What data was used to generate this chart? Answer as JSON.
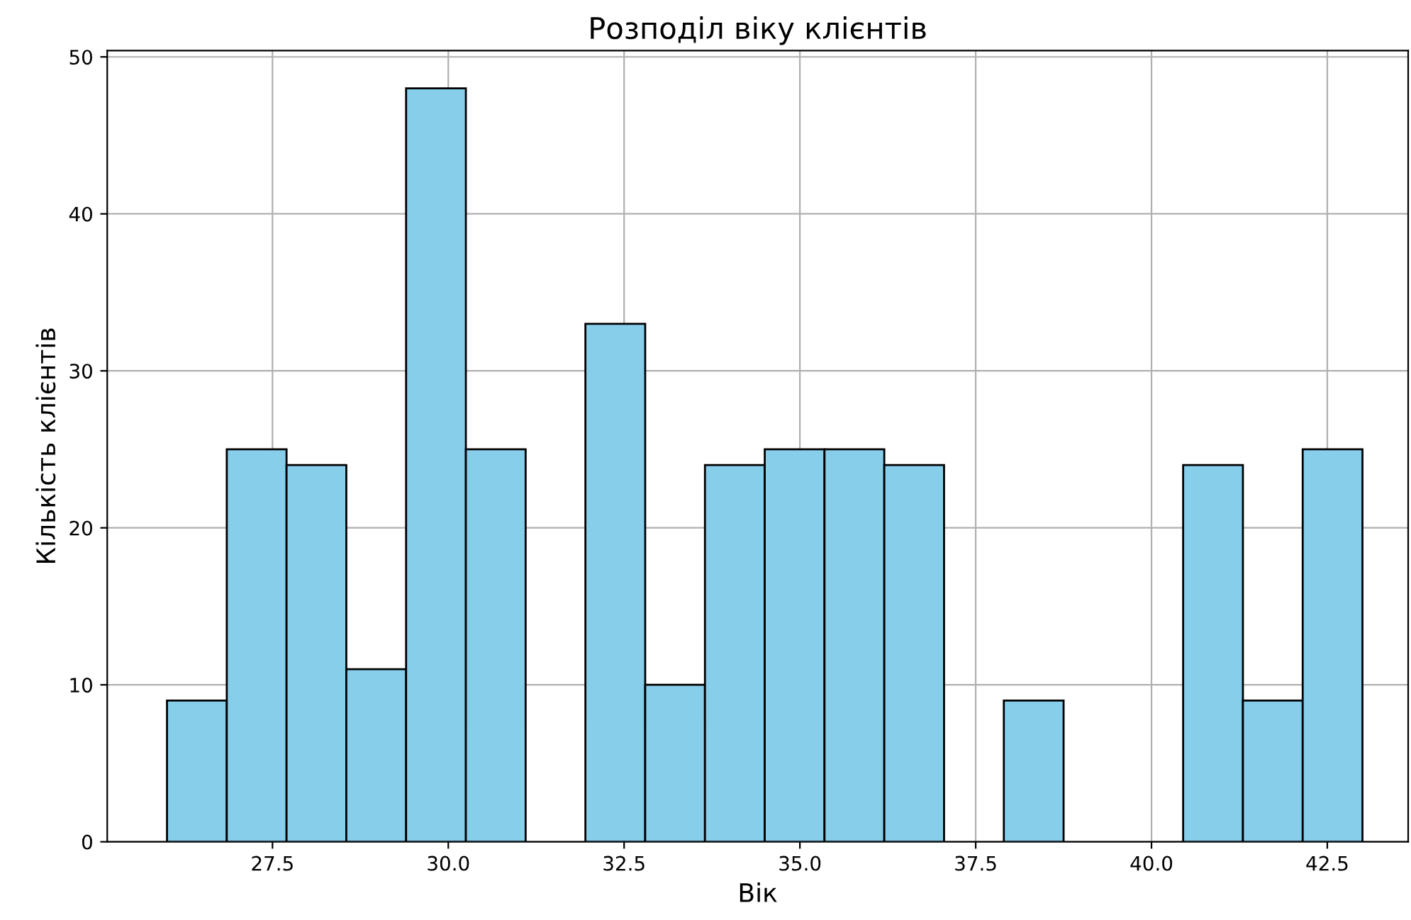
{
  "chart_data": {
    "type": "histogram",
    "title": "Розподіл віку клієнтів",
    "xlabel": "Вік",
    "ylabel": "Кількість клієнтів",
    "bins": [
      26.0,
      26.85,
      27.7,
      28.55,
      29.4,
      30.25,
      31.1,
      31.95,
      32.8,
      33.65,
      34.5,
      35.35,
      36.2,
      37.05,
      37.9,
      38.75,
      39.6,
      40.45,
      41.3,
      42.15,
      43.0
    ],
    "values": [
      9,
      25,
      24,
      11,
      48,
      25,
      0,
      33,
      10,
      24,
      25,
      25,
      24,
      0,
      9,
      0,
      0,
      24,
      9,
      25
    ],
    "color": "#87ceeb",
    "xlim": [
      25.15,
      43.65
    ],
    "ylim": [
      0,
      50.4
    ],
    "xticks": [
      {
        "value": 27.5,
        "label": "27.5"
      },
      {
        "value": 30.0,
        "label": "30.0"
      },
      {
        "value": 32.5,
        "label": "32.5"
      },
      {
        "value": 35.0,
        "label": "35.0"
      },
      {
        "value": 37.5,
        "label": "37.5"
      },
      {
        "value": 40.0,
        "label": "40.0"
      },
      {
        "value": 42.5,
        "label": "42.5"
      }
    ],
    "yticks": [
      0,
      10,
      20,
      30,
      40,
      50
    ],
    "grid": true
  }
}
